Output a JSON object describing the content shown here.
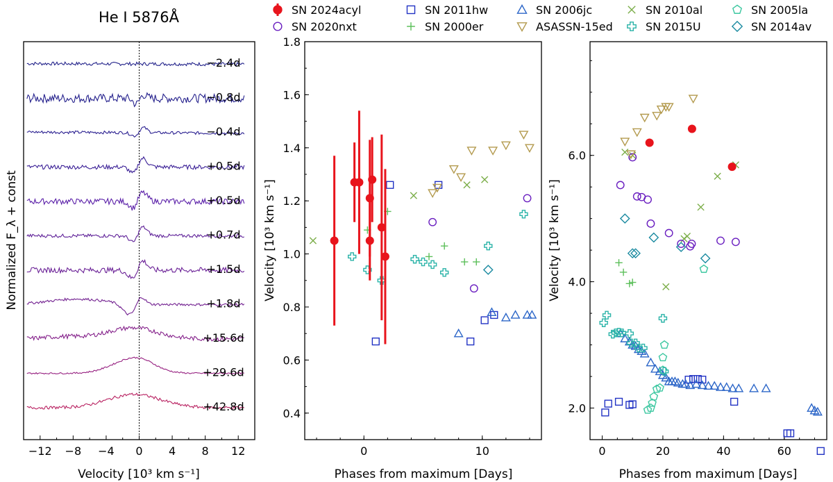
{
  "legend": [
    {
      "name": "SN 2024acyl",
      "marker": "errorbar",
      "color": "#e8141c"
    },
    {
      "name": "SN 2011hw",
      "marker": "square",
      "color": "#2233c4"
    },
    {
      "name": "SN 2006jc",
      "marker": "triangle",
      "color": "#2c66c8"
    },
    {
      "name": "SN 2010al",
      "marker": "x",
      "color": "#7cae4a"
    },
    {
      "name": "SN 2005la",
      "marker": "pentagon",
      "color": "#3cc7a0"
    },
    {
      "name": "SN 2020nxt",
      "marker": "circle",
      "color": "#6a1fc0"
    },
    {
      "name": "SN 2000er",
      "marker": "plus",
      "color": "#5cbf5a"
    },
    {
      "name": "ASASSN-15ed",
      "marker": "tri_down",
      "color": "#b39a4e"
    },
    {
      "name": "SN 2015U",
      "marker": "thick_plus",
      "color": "#2ab3a8"
    },
    {
      "name": "SN 2014av",
      "marker": "diamond",
      "color": "#1a8aa0"
    }
  ],
  "chart_data": [
    {
      "type": "line",
      "title": "He I 5876Å",
      "xlabel": "Velocity [10³ km s⁻¹]",
      "ylabel": "Normalized F_λ + const",
      "xlim": [
        -14,
        14
      ],
      "xticks": [
        -12,
        -8,
        -4,
        0,
        4,
        8,
        12
      ],
      "xtick_labels": [
        "−12",
        "−8",
        "−4",
        "0",
        "4",
        "8",
        "12"
      ],
      "reference_line_x": 0,
      "series": [
        {
          "name": "−2.4d",
          "profile": "flat",
          "noise": 0.35,
          "color": "#22228a"
        },
        {
          "name": "−0.8d",
          "profile": "noisy_dip",
          "noise": 0.9,
          "color": "#24208c"
        },
        {
          "name": "−0.4d",
          "profile": "pcygni_weak",
          "noise": 0.3,
          "color": "#2a1f90"
        },
        {
          "name": "+0.5d",
          "profile": "pcygni",
          "noise": 0.45,
          "color": "#3a1f96"
        },
        {
          "name": "+0.5d",
          "profile": "pcygni",
          "noise": 0.6,
          "color": "#5a1fa8"
        },
        {
          "name": "+0.7d",
          "profile": "pcygni",
          "noise": 0.35,
          "color": "#5e2098"
        },
        {
          "name": "+1.5d",
          "profile": "pcygni_strong",
          "noise": 0.55,
          "color": "#6a2096"
        },
        {
          "name": "+1.8d",
          "profile": "pcygni_broad",
          "noise": 0.25,
          "color": "#722090"
        },
        {
          "name": "+15.6d",
          "profile": "broad_emission",
          "noise": 0.45,
          "color": "#84208a"
        },
        {
          "name": "+29.6d",
          "profile": "broad_emission_peak",
          "noise": 0.15,
          "color": "#962080"
        },
        {
          "name": "+42.8d",
          "profile": "broad_emission_smooth",
          "noise": 0.3,
          "color": "#b82060"
        }
      ]
    },
    {
      "type": "scatter",
      "xlabel": "Phases from maximum [Days]",
      "ylabel": "Velocity [10³ km s⁻¹]",
      "xlim": [
        -5,
        15
      ],
      "ylim": [
        0.3,
        1.8
      ],
      "xticks": [
        0,
        10
      ],
      "xtick_labels": [
        "0",
        "10"
      ],
      "yticks": [
        0.4,
        0.6,
        0.8,
        1.0,
        1.2,
        1.4,
        1.6,
        1.8
      ],
      "ytick_labels": [
        "0.4",
        "0.6",
        "0.8",
        "1.0",
        "1.2",
        "1.4",
        "1.6",
        "1.8"
      ],
      "series": [
        {
          "name": "SN 2024acyl",
          "points": [
            [
              -2.5,
              1.05,
              0.32
            ],
            [
              -0.8,
              1.27,
              0.15
            ],
            [
              -0.4,
              1.27,
              0.27
            ],
            [
              0.5,
              1.05,
              0.15
            ],
            [
              0.5,
              1.21,
              0.22
            ],
            [
              0.7,
              1.28,
              0.16
            ],
            [
              1.5,
              1.1,
              0.35
            ],
            [
              1.8,
              0.99,
              0.33
            ]
          ]
        },
        {
          "name": "SN 2011hw",
          "points": [
            [
              1.0,
              0.67
            ],
            [
              2.2,
              1.26
            ],
            [
              6.3,
              1.26
            ],
            [
              10.2,
              0.75
            ],
            [
              11.0,
              0.77
            ],
            [
              9.0,
              0.67
            ]
          ]
        },
        {
          "name": "SN 2006jc",
          "points": [
            [
              8.0,
              0.7
            ],
            [
              10.8,
              0.78
            ],
            [
              12.0,
              0.76
            ],
            [
              12.8,
              0.77
            ],
            [
              13.8,
              0.77
            ],
            [
              14.2,
              0.77
            ]
          ]
        },
        {
          "name": "SN 2010al",
          "points": [
            [
              -4.3,
              1.05
            ],
            [
              4.2,
              1.22
            ],
            [
              8.7,
              1.26
            ],
            [
              10.2,
              1.28
            ]
          ]
        },
        {
          "name": "SN 2020nxt",
          "points": [
            [
              5.8,
              1.12
            ],
            [
              9.3,
              0.87
            ],
            [
              13.8,
              1.21
            ]
          ]
        },
        {
          "name": "SN 2000er",
          "points": [
            [
              0.3,
              1.09
            ],
            [
              2.0,
              1.16
            ],
            [
              5.5,
              0.99
            ],
            [
              6.8,
              1.03
            ],
            [
              8.5,
              0.97
            ],
            [
              9.5,
              0.97
            ]
          ]
        },
        {
          "name": "ASASSN-15ed",
          "points": [
            [
              5.8,
              1.23
            ],
            [
              6.2,
              1.25
            ],
            [
              7.6,
              1.32
            ],
            [
              8.2,
              1.29
            ],
            [
              9.1,
              1.39
            ],
            [
              10.9,
              1.39
            ],
            [
              12.0,
              1.41
            ],
            [
              13.5,
              1.45
            ],
            [
              14.0,
              1.4
            ]
          ]
        },
        {
          "name": "SN 2015U",
          "points": [
            [
              -1.0,
              0.99
            ],
            [
              0.3,
              0.94
            ],
            [
              1.5,
              0.9
            ],
            [
              4.3,
              0.98
            ],
            [
              5.0,
              0.97
            ],
            [
              5.8,
              0.96
            ],
            [
              6.8,
              0.93
            ],
            [
              10.5,
              1.03
            ],
            [
              13.5,
              1.15
            ]
          ]
        },
        {
          "name": "SN 2014av",
          "points": [
            [
              10.5,
              0.94
            ]
          ]
        }
      ]
    },
    {
      "type": "scatter",
      "xlabel": "Phases from maximum [Days]",
      "ylabel": "Velocity [10³ km s⁻¹]",
      "xlim": [
        -4,
        74
      ],
      "ylim": [
        1.5,
        7.8
      ],
      "xticks": [
        0,
        20,
        40,
        60
      ],
      "xtick_labels": [
        "0",
        "20",
        "40",
        "60"
      ],
      "yticks": [
        2.0,
        4.0,
        6.0
      ],
      "ytick_labels": [
        "2.0",
        "4.0",
        "6.0"
      ],
      "series": [
        {
          "name": "SN 2024acyl",
          "points": [
            [
              15.6,
              6.2
            ],
            [
              29.6,
              6.42
            ],
            [
              42.8,
              5.82
            ]
          ]
        },
        {
          "name": "SN 2011hw",
          "points": [
            [
              1,
              1.93
            ],
            [
              2,
              2.07
            ],
            [
              5.5,
              2.1
            ],
            [
              9,
              2.05
            ],
            [
              10,
              2.06
            ],
            [
              28.5,
              2.45
            ],
            [
              30,
              2.46
            ],
            [
              31.5,
              2.46
            ],
            [
              33,
              2.45
            ],
            [
              43.5,
              2.1
            ],
            [
              61,
              1.6
            ],
            [
              62,
              1.6
            ],
            [
              72,
              1.32
            ]
          ]
        },
        {
          "name": "SN 2006jc",
          "points": [
            [
              6,
              3.18
            ],
            [
              7.5,
              3.1
            ],
            [
              9,
              3.05
            ],
            [
              10,
              3.0
            ],
            [
              11,
              2.98
            ],
            [
              12,
              2.93
            ],
            [
              13,
              2.9
            ],
            [
              14,
              2.86
            ],
            [
              16,
              2.72
            ],
            [
              17.5,
              2.62
            ],
            [
              19,
              2.58
            ],
            [
              20,
              2.52
            ],
            [
              21,
              2.48
            ],
            [
              22,
              2.42
            ],
            [
              23,
              2.42
            ],
            [
              24,
              2.42
            ],
            [
              25,
              2.4
            ],
            [
              26.5,
              2.38
            ],
            [
              27.5,
              2.38
            ],
            [
              29,
              2.36
            ],
            [
              31,
              2.38
            ],
            [
              33,
              2.36
            ],
            [
              35,
              2.35
            ],
            [
              37,
              2.35
            ],
            [
              39,
              2.33
            ],
            [
              41,
              2.33
            ],
            [
              43,
              2.31
            ],
            [
              45,
              2.31
            ],
            [
              50,
              2.31
            ],
            [
              54,
              2.31
            ],
            [
              69,
              2.0
            ],
            [
              70,
              1.96
            ],
            [
              71,
              1.94
            ]
          ]
        },
        {
          "name": "SN 2010al",
          "points": [
            [
              7.5,
              6.05
            ],
            [
              10,
              6.0
            ],
            [
              21,
              3.92
            ],
            [
              27,
              4.68
            ],
            [
              28,
              4.72
            ],
            [
              32.5,
              5.18
            ],
            [
              38,
              5.67
            ],
            [
              44,
              5.85
            ]
          ]
        },
        {
          "name": "SN 2005la",
          "points": [
            [
              15,
              1.97
            ],
            [
              16,
              2.0
            ],
            [
              16.5,
              2.08
            ],
            [
              17,
              2.18
            ],
            [
              18,
              2.3
            ],
            [
              19,
              2.32
            ],
            [
              20,
              2.6
            ],
            [
              20,
              2.8
            ],
            [
              20.5,
              3.0
            ],
            [
              33.5,
              4.2
            ]
          ]
        },
        {
          "name": "SN 2020nxt",
          "points": [
            [
              10,
              5.97
            ],
            [
              6,
              5.53
            ],
            [
              11.5,
              5.35
            ],
            [
              13,
              5.34
            ],
            [
              15,
              5.3
            ],
            [
              16,
              4.92
            ],
            [
              22,
              4.77
            ],
            [
              26,
              4.6
            ],
            [
              29,
              4.56
            ],
            [
              29.5,
              4.6
            ],
            [
              39,
              4.65
            ],
            [
              44,
              4.63
            ]
          ]
        },
        {
          "name": "SN 2000er",
          "points": [
            [
              5.5,
              4.3
            ],
            [
              7,
              4.15
            ],
            [
              9,
              3.97
            ],
            [
              10,
              3.99
            ]
          ]
        },
        {
          "name": "ASASSN-15ed",
          "points": [
            [
              7.5,
              6.22
            ],
            [
              9.5,
              6.02
            ],
            [
              11.5,
              6.37
            ],
            [
              14,
              6.6
            ],
            [
              18,
              6.63
            ],
            [
              19.5,
              6.73
            ],
            [
              21,
              6.77
            ],
            [
              22,
              6.77
            ],
            [
              30,
              6.9
            ]
          ]
        },
        {
          "name": "SN 2015U",
          "points": [
            [
              0.5,
              3.35
            ],
            [
              1.5,
              3.47
            ],
            [
              3.5,
              3.17
            ],
            [
              4.5,
              3.19
            ],
            [
              5.5,
              3.2
            ],
            [
              6.5,
              3.19
            ],
            [
              9,
              3.18
            ],
            [
              9.5,
              3.03
            ],
            [
              11,
              3.03
            ],
            [
              12,
              2.95
            ],
            [
              13.5,
              2.95
            ],
            [
              20,
              3.42
            ],
            [
              20.5,
              2.58
            ]
          ]
        },
        {
          "name": "SN 2014av",
          "points": [
            [
              7.5,
              5.0
            ],
            [
              10,
              4.45
            ],
            [
              11,
              4.45
            ],
            [
              17,
              4.7
            ],
            [
              26,
              4.55
            ],
            [
              34,
              4.37
            ]
          ]
        }
      ]
    }
  ]
}
